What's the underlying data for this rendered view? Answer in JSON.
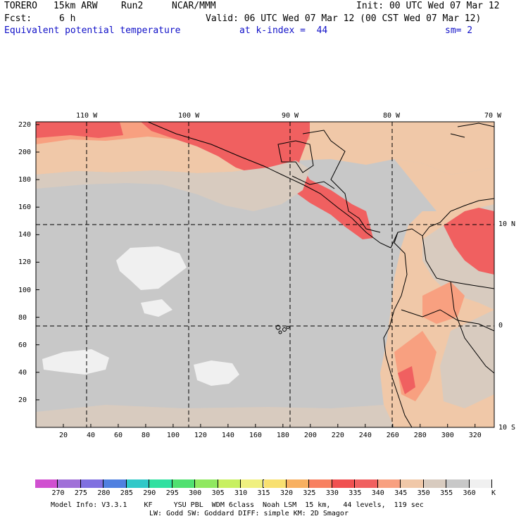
{
  "header": {
    "model": "TORERO",
    "resolution": "15km ARW",
    "run": "Run2",
    "org": "NCAR/MMM",
    "init": "Init: 00 UTC Wed 07 Mar 12",
    "fcst_label": "Fcst:",
    "fcst_value": "6 h",
    "valid": "Valid: 06 UTC Wed 07 Mar 12 (00 CST Wed 07 Mar 12)",
    "field": "Equivalent potential temperature",
    "level": "at k-index =  44",
    "smoothing": "sm= 2"
  },
  "map": {
    "lon_labels": [
      "110 W",
      "100 W",
      "90 W",
      "80 W",
      "70 W"
    ],
    "lat_labels": [
      "10 N",
      "0",
      "10 S"
    ],
    "y_ticks": [
      "220",
      "200",
      "180",
      "160",
      "140",
      "120",
      "100",
      "80",
      "60",
      "40",
      "20"
    ],
    "x_ticks": [
      "20",
      "40",
      "60",
      "80",
      "100",
      "120",
      "140",
      "160",
      "180",
      "200",
      "220",
      "240",
      "260",
      "280",
      "300",
      "320"
    ]
  },
  "colorbar": {
    "levels": [
      "270",
      "275",
      "280",
      "285",
      "290",
      "295",
      "300",
      "305",
      "310",
      "315",
      "320",
      "325",
      "330",
      "335",
      "340",
      "345",
      "350",
      "355",
      "360"
    ],
    "unit": "K",
    "colors": [
      "#d050d0",
      "#a070d8",
      "#8070e0",
      "#5080e0",
      "#30c8c8",
      "#30e0a0",
      "#50e070",
      "#90e860",
      "#c8f060",
      "#f0f080",
      "#f8e070",
      "#f8b060",
      "#f88060",
      "#f05050",
      "#f06060",
      "#f8a080",
      "#f0c8a8",
      "#d8cbbf",
      "#c8c8c8",
      "#f0f0f0"
    ]
  },
  "footer": {
    "line1": "Model Info: V3.3.1    KF     YSU PBL  WDM 6class  Noah LSM  15 km,   44 levels,  119 sec",
    "line2": "LW: Godd SW: Goddard DIFF: simple KM: 2D Smagor"
  }
}
